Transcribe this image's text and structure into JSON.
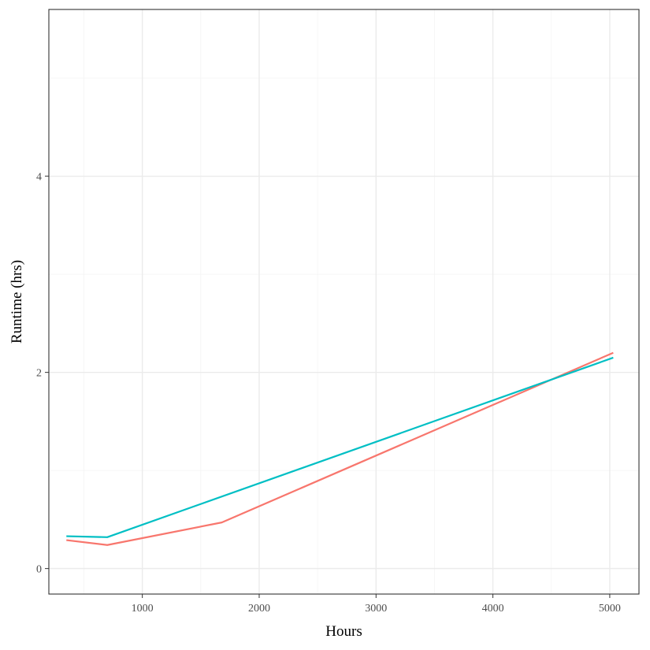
{
  "chart_data": {
    "type": "line",
    "xlabel": "Hours",
    "ylabel": "Runtime (hrs)",
    "xlim": [
      200,
      5250
    ],
    "ylim": [
      -0.26,
      5.7
    ],
    "x_ticks": [
      1000,
      2000,
      3000,
      4000,
      5000
    ],
    "x_minor_ticks": [
      500,
      1500,
      2500,
      3500,
      4500
    ],
    "y_ticks": [
      0,
      2,
      4
    ],
    "y_minor_ticks": [
      1,
      3,
      5
    ],
    "grid": true,
    "legend": "none",
    "series": [
      {
        "color": "#F8766D",
        "x": [
          350,
          700,
          1680,
          5030
        ],
        "y": [
          0.29,
          0.24,
          0.47,
          2.2
        ]
      },
      {
        "color": "#00BFC4",
        "x": [
          350,
          700,
          5030
        ],
        "y": [
          0.33,
          0.32,
          2.15
        ]
      }
    ]
  }
}
